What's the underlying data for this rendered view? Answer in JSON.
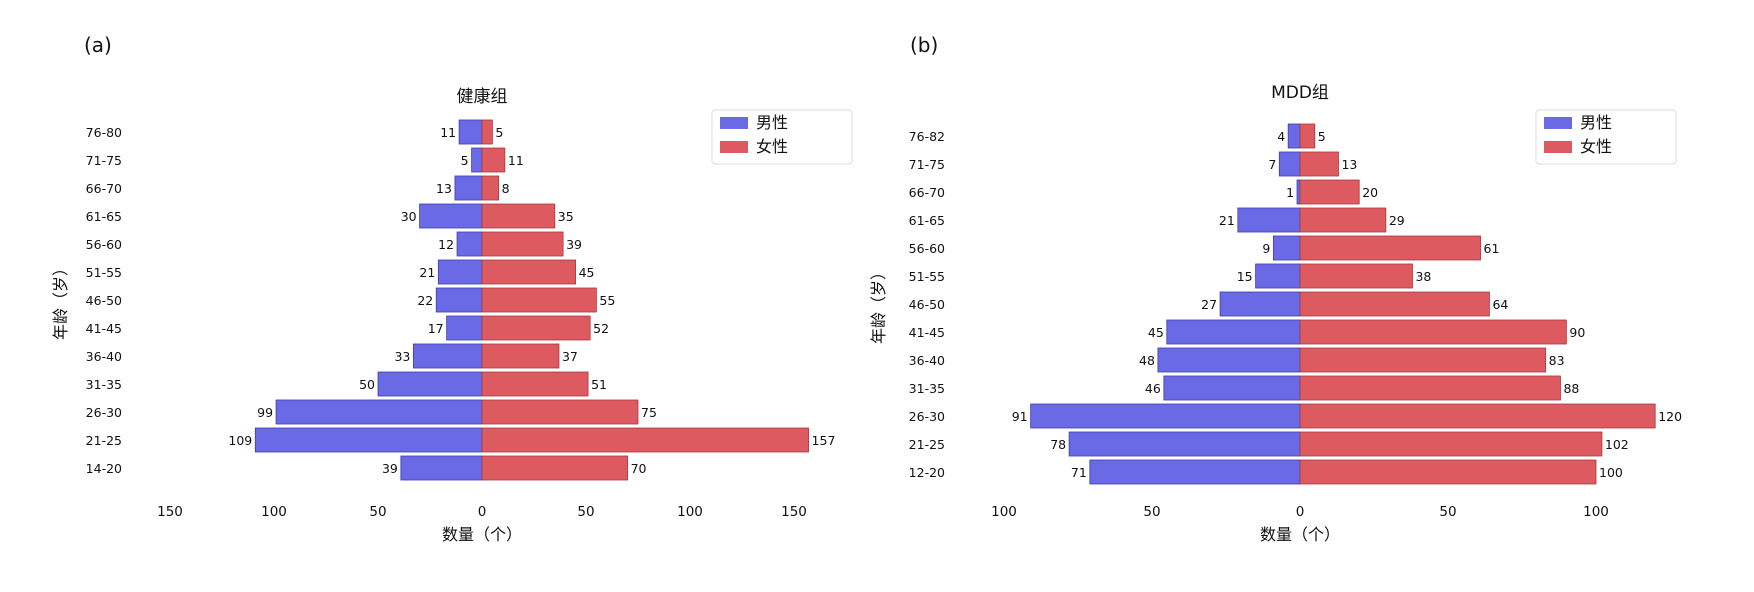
{
  "chart_data": [
    {
      "panel_label": "(a)",
      "type": "bar",
      "orientation": "horizontal-pyramid",
      "title": "健康组",
      "xlabel": "数量（个）",
      "ylabel": "年龄（岁）",
      "categories": [
        "14-20",
        "21-25",
        "26-30",
        "31-35",
        "36-40",
        "41-45",
        "46-50",
        "51-55",
        "56-60",
        "61-65",
        "66-70",
        "71-75",
        "76-80"
      ],
      "series": [
        {
          "name": "男性",
          "color": "#6a6ae6",
          "values": [
            39,
            109,
            99,
            50,
            33,
            17,
            22,
            21,
            12,
            30,
            13,
            5,
            11
          ]
        },
        {
          "name": "女性",
          "color": "#dd5b60",
          "values": [
            70,
            157,
            75,
            51,
            37,
            52,
            55,
            45,
            39,
            35,
            8,
            11,
            5
          ]
        }
      ],
      "xlim": [
        -150,
        160
      ],
      "xticks": [
        -150,
        -100,
        -50,
        0,
        50,
        100,
        150
      ],
      "xtick_labels": [
        "150",
        "100",
        "50",
        "0",
        "50",
        "100",
        "150"
      ],
      "legend": "top-right",
      "grid": false
    },
    {
      "panel_label": "(b)",
      "type": "bar",
      "orientation": "horizontal-pyramid",
      "title": "MDD组",
      "xlabel": "数量（个）",
      "ylabel": "年龄（岁）",
      "categories": [
        "12-20",
        "21-25",
        "26-30",
        "31-35",
        "36-40",
        "41-45",
        "46-50",
        "51-55",
        "56-60",
        "61-65",
        "66-70",
        "71-75",
        "76-82"
      ],
      "series": [
        {
          "name": "男性",
          "color": "#6a6ae6",
          "values": [
            71,
            78,
            91,
            46,
            48,
            45,
            27,
            15,
            9,
            21,
            1,
            7,
            4
          ]
        },
        {
          "name": "女性",
          "color": "#dd5b60",
          "values": [
            100,
            102,
            120,
            88,
            83,
            90,
            64,
            38,
            61,
            29,
            20,
            13,
            5
          ]
        }
      ],
      "xlim": [
        -100,
        122
      ],
      "xticks": [
        -100,
        -50,
        0,
        50,
        100
      ],
      "xtick_labels": [
        "100",
        "50",
        "0",
        "50",
        "100"
      ],
      "legend": "top-right",
      "grid": false
    }
  ]
}
